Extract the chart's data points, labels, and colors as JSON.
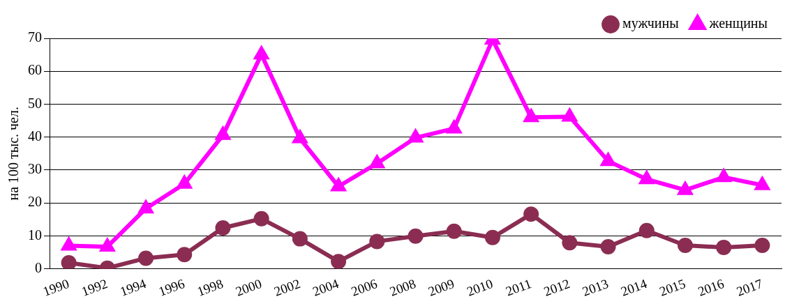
{
  "chart_data": {
    "type": "line",
    "ylabel": "на 100 тыс. чел.",
    "categories": [
      "1990",
      "1992",
      "1994",
      "1996",
      "1998",
      "2000",
      "2002",
      "2004",
      "2006",
      "2008",
      "2009",
      "2010",
      "2011",
      "2012",
      "2013",
      "2014",
      "2015",
      "2016",
      "2017"
    ],
    "series": [
      {
        "name": "мужчины",
        "color": "#8b2d52",
        "marker": "circle",
        "values": [
          1.8,
          0.2,
          3.2,
          4.3,
          12.4,
          15.2,
          9.1,
          2.2,
          8.3,
          9.9,
          11.4,
          9.5,
          16.6,
          7.9,
          6.7,
          11.6,
          7.1,
          6.5,
          7.1
        ]
      },
      {
        "name": "женщины",
        "color": "#ff00ff",
        "marker": "triangle",
        "values": [
          7,
          6.7,
          18.3,
          25.8,
          40.6,
          65.1,
          39.6,
          25,
          32,
          39.8,
          42.6,
          69.6,
          46,
          46.2,
          32.7,
          27.2,
          23.9,
          27.8,
          25.4
        ]
      }
    ],
    "ylim": [
      0,
      70
    ],
    "yticks": [
      0,
      10,
      20,
      30,
      40,
      50,
      60,
      70
    ],
    "grid": "y",
    "legend": "top right",
    "line_style": "solid"
  }
}
